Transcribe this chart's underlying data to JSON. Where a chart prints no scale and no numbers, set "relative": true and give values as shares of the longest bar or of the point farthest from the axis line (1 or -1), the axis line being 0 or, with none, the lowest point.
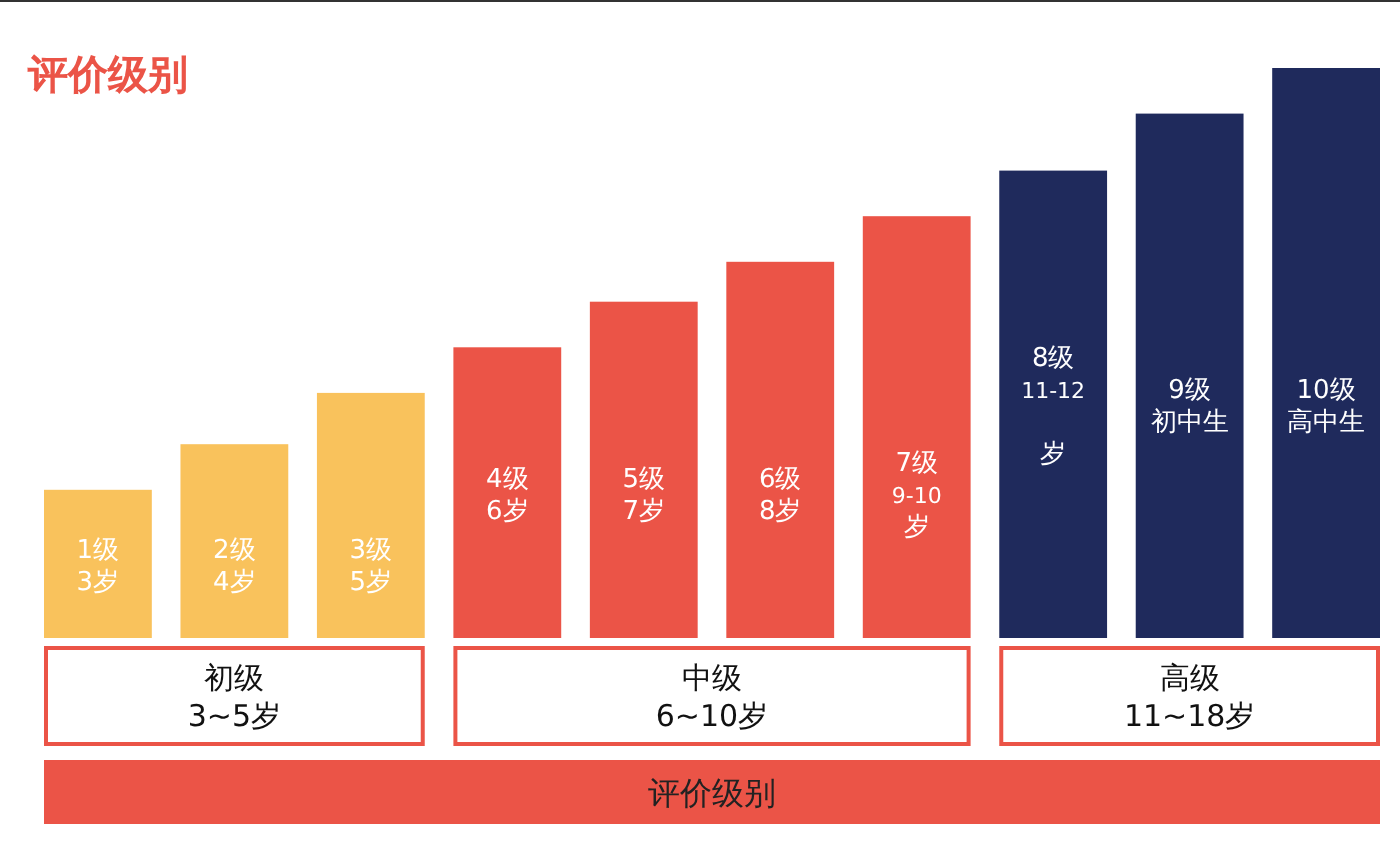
{
  "chart_data": {
    "type": "bar",
    "title": "评价级别",
    "relative": true,
    "categories": [
      "1级\n3岁",
      "2级\n4岁",
      "3级\n5岁",
      "4级\n6岁",
      "5级\n7岁",
      "6级\n8岁",
      "7级\n9-10\n岁",
      "8级\n11-12\n岁",
      "9级初中生",
      "10级高中生"
    ],
    "values": [
      0.26,
      0.34,
      0.43,
      0.51,
      0.59,
      0.66,
      0.74,
      0.82,
      0.92,
      1
    ],
    "colors": [
      "#f9c25c",
      "#f9c25c",
      "#f9c25c",
      "#eb5447",
      "#eb5447",
      "#eb5447",
      "#eb5447",
      "#1f2a5c",
      "#1f2a5c",
      "#1f2a5c"
    ],
    "annotations": [
      "初级\n3~5岁",
      "中级\n6~10岁",
      "高级\n11~18岁",
      "评价级别"
    ]
  }
}
